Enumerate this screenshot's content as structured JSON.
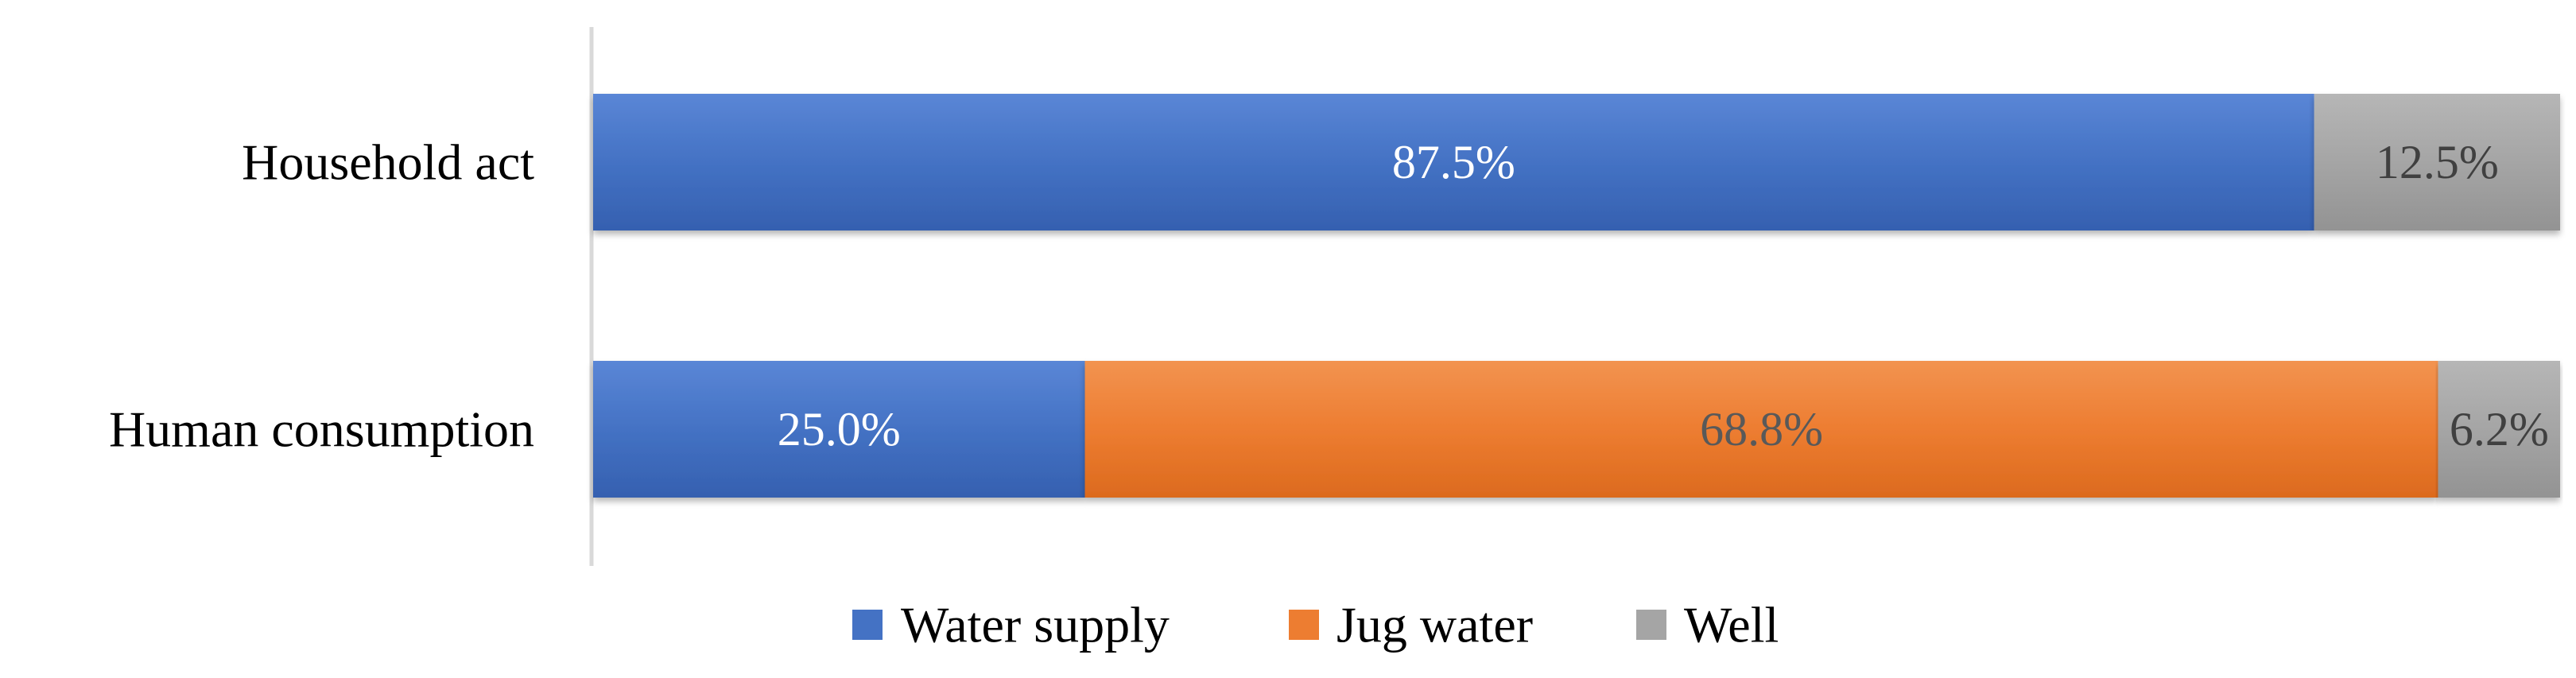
{
  "chart_data": {
    "type": "bar",
    "orientation": "horizontal",
    "stacked": true,
    "percent_stacked": true,
    "categories": [
      "Household act",
      "Human consumption"
    ],
    "series": [
      {
        "name": "Water supply",
        "values": [
          87.5,
          25.0
        ],
        "labels": [
          "87.5%",
          "25.0%"
        ],
        "color": "#4472C4",
        "label_color": "#ffffff"
      },
      {
        "name": "Jug water",
        "values": [
          0,
          68.8
        ],
        "labels": [
          "",
          "68.8%"
        ],
        "color": "#ED7D31",
        "label_color": "#595959"
      },
      {
        "name": "Well",
        "values": [
          12.5,
          6.2
        ],
        "labels": [
          "12.5%",
          "6.2%"
        ],
        "color": "#A5A5A5",
        "label_color": "#404040"
      }
    ],
    "xlim": [
      0,
      100
    ],
    "title": "",
    "xlabel": "",
    "ylabel": "",
    "grid": false,
    "legend_position": "bottom"
  }
}
